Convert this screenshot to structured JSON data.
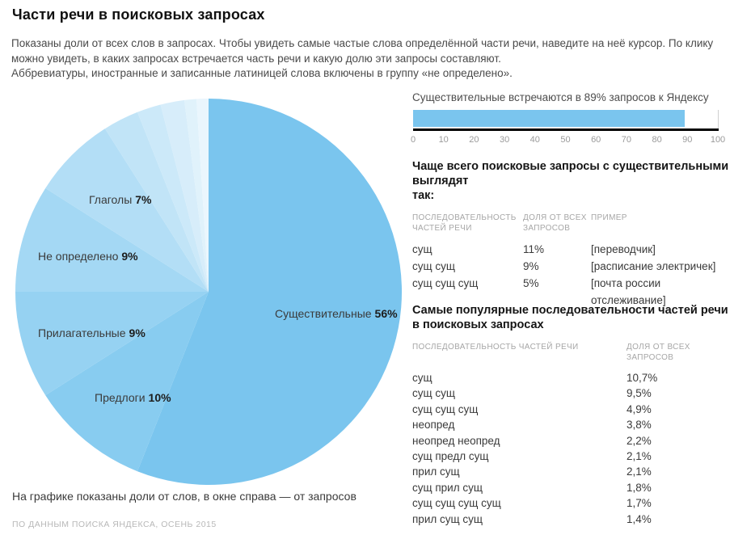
{
  "header": {
    "title": "Части речи в поисковых запросах",
    "description_1": "Показаны доли от всех слов в запросах. Чтобы увидеть самые частые слова определённой части речи, наведите на неё курсор. По клику можно увидеть, в каких запросах встречается часть речи и какую долю эти запросы составляют.",
    "description_2": "Аббревиатуры, иностранные и записанные латиницей слова включены в группу «не определено»."
  },
  "colors": {
    "accent": "#7ac5ee",
    "axis": "#000000",
    "muted_text": "#a6a6a6"
  },
  "chart_data": [
    {
      "type": "pie",
      "start_angle_deg": 0,
      "direction": "clockwise",
      "slices": [
        {
          "label": "Существительные",
          "value": 56,
          "percent_text": "56%",
          "color": "#7ac5ee"
        },
        {
          "label": "Предлоги",
          "value": 10,
          "percent_text": "10%",
          "color": "#88ccf0"
        },
        {
          "label": "Прилагательные",
          "value": 9,
          "percent_text": "9%",
          "color": "#96d2f2"
        },
        {
          "label": "Не определено",
          "value": 9,
          "percent_text": "9%",
          "color": "#a4d8f4"
        },
        {
          "label": "Глаголы",
          "value": 7,
          "percent_text": "7%",
          "color": "#b3def6"
        },
        {
          "label": "",
          "value": 3,
          "color": "#c1e4f7"
        },
        {
          "label": "",
          "value": 2,
          "color": "#cce9f9"
        },
        {
          "label": "",
          "value": 2,
          "color": "#d7edfa"
        },
        {
          "label": "",
          "value": 1,
          "color": "#e0f2fb"
        },
        {
          "label": "",
          "value": 1,
          "color": "#eaf6fd"
        }
      ]
    },
    {
      "type": "bar",
      "orientation": "horizontal",
      "title": "Существительные встречаются в 89% запросов к Яндексу",
      "categories": [
        "Существительные"
      ],
      "values": [
        89
      ],
      "xlim": [
        0,
        100
      ],
      "ticks": [
        0,
        10,
        20,
        30,
        40,
        50,
        60,
        70,
        80,
        90,
        100
      ],
      "bar_color": "#7ac5ee"
    }
  ],
  "noun_queries_table": {
    "title_lines": [
      "Чаще всего поисковые запросы с существительными выглядят",
      "так:"
    ],
    "columns": [
      "ПОСЛЕДОВАТЕЛЬНОСТЬ ЧАСТЕЙ РЕЧИ",
      "ДОЛЯ ОТ ВСЕХ ЗАПРОСОВ",
      "ПРИМЕР"
    ],
    "rows": [
      {
        "sequence": "сущ",
        "share": "11%",
        "example": "[переводчик]"
      },
      {
        "sequence": "сущ сущ",
        "share": "9%",
        "example": "[расписание электричек]"
      },
      {
        "sequence": "сущ сущ сущ",
        "share": "5%",
        "example": "[почта россии отслеживание]"
      }
    ]
  },
  "popular_sequences_table": {
    "title_lines": [
      "Самые популярные последовательности частей речи",
      "в поисковых запросах"
    ],
    "columns": [
      "ПОСЛЕДОВАТЕЛЬНОСТЬ ЧАСТЕЙ РЕЧИ",
      "ДОЛЯ ОТ ВСЕХ ЗАПРОСОВ"
    ],
    "rows": [
      {
        "sequence": "сущ",
        "share": "10,7%"
      },
      {
        "sequence": "сущ сущ",
        "share": "9,5%"
      },
      {
        "sequence": "сущ сущ сущ",
        "share": "4,9%"
      },
      {
        "sequence": "неопред",
        "share": "3,8%"
      },
      {
        "sequence": "неопред неопред",
        "share": "2,2%"
      },
      {
        "sequence": "сущ предл сущ",
        "share": "2,1%"
      },
      {
        "sequence": "прил сущ",
        "share": "2,1%"
      },
      {
        "sequence": "сущ прил сущ",
        "share": "1,8%"
      },
      {
        "sequence": "сущ сущ сущ сущ",
        "share": "1,7%"
      },
      {
        "sequence": "прил сущ сущ",
        "share": "1,4%"
      }
    ]
  },
  "footer": {
    "note": "На графике показаны доли от слов, в окне справа — от запросов",
    "source": "ПО ДАННЫМ ПОИСКА ЯНДЕКСА, ОСЕНЬ 2015"
  }
}
